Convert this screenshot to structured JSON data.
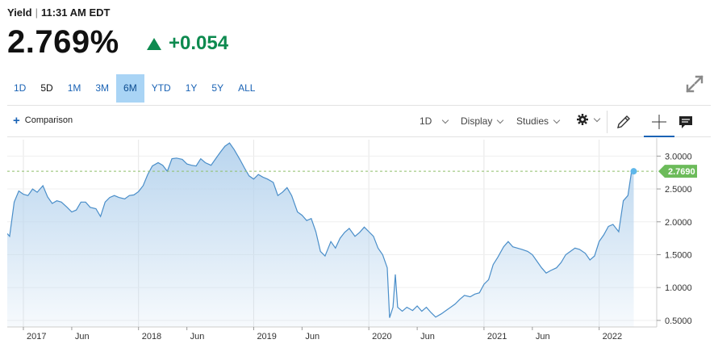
{
  "quote": {
    "label": "Yield",
    "separator": "|",
    "time": "11:31 AM EDT",
    "price": "2.769%",
    "change": "+0.054",
    "change_direction": "up",
    "up_color": "#0d8a4f"
  },
  "ranges": [
    {
      "label": "1D",
      "active": false,
      "bold": false
    },
    {
      "label": "5D",
      "active": false,
      "bold": true
    },
    {
      "label": "1M",
      "active": false,
      "bold": false
    },
    {
      "label": "3M",
      "active": false,
      "bold": false
    },
    {
      "label": "6M",
      "active": true,
      "bold": false
    },
    {
      "label": "YTD",
      "active": false,
      "bold": false
    },
    {
      "label": "1Y",
      "active": false,
      "bold": false
    },
    {
      "label": "5Y",
      "active": false,
      "bold": false
    },
    {
      "label": "ALL",
      "active": false,
      "bold": false
    }
  ],
  "toolbar": {
    "comparison_label": "Comparison",
    "interval_label": "1D",
    "display_label": "Display",
    "studies_label": "Studies",
    "icons": [
      "plus-icon",
      "chevron-down-icon",
      "gear-icon",
      "pencil-icon",
      "crosshair-icon",
      "comment-icon",
      "expand-icon"
    ]
  },
  "chart_data": {
    "type": "area",
    "series": [
      {
        "values": [
          [
            2016.86,
            1.82
          ],
          [
            2016.88,
            1.78
          ],
          [
            2016.92,
            2.3
          ],
          [
            2016.96,
            2.47
          ],
          [
            2017.0,
            2.42
          ],
          [
            2017.04,
            2.4
          ],
          [
            2017.08,
            2.5
          ],
          [
            2017.12,
            2.45
          ],
          [
            2017.17,
            2.55
          ],
          [
            2017.21,
            2.38
          ],
          [
            2017.25,
            2.28
          ],
          [
            2017.29,
            2.32
          ],
          [
            2017.33,
            2.3
          ],
          [
            2017.38,
            2.22
          ],
          [
            2017.42,
            2.15
          ],
          [
            2017.46,
            2.18
          ],
          [
            2017.5,
            2.3
          ],
          [
            2017.54,
            2.3
          ],
          [
            2017.58,
            2.22
          ],
          [
            2017.63,
            2.2
          ],
          [
            2017.67,
            2.08
          ],
          [
            2017.71,
            2.3
          ],
          [
            2017.75,
            2.37
          ],
          [
            2017.79,
            2.4
          ],
          [
            2017.83,
            2.37
          ],
          [
            2017.88,
            2.35
          ],
          [
            2017.92,
            2.4
          ],
          [
            2017.96,
            2.41
          ],
          [
            2018.0,
            2.46
          ],
          [
            2018.04,
            2.55
          ],
          [
            2018.08,
            2.72
          ],
          [
            2018.12,
            2.85
          ],
          [
            2018.17,
            2.9
          ],
          [
            2018.21,
            2.86
          ],
          [
            2018.25,
            2.77
          ],
          [
            2018.29,
            2.96
          ],
          [
            2018.33,
            2.97
          ],
          [
            2018.38,
            2.95
          ],
          [
            2018.42,
            2.88
          ],
          [
            2018.46,
            2.86
          ],
          [
            2018.5,
            2.85
          ],
          [
            2018.54,
            2.96
          ],
          [
            2018.58,
            2.9
          ],
          [
            2018.63,
            2.86
          ],
          [
            2018.67,
            2.96
          ],
          [
            2018.71,
            3.06
          ],
          [
            2018.75,
            3.15
          ],
          [
            2018.79,
            3.2
          ],
          [
            2018.83,
            3.1
          ],
          [
            2018.88,
            2.95
          ],
          [
            2018.92,
            2.82
          ],
          [
            2018.96,
            2.7
          ],
          [
            2019.0,
            2.65
          ],
          [
            2019.04,
            2.72
          ],
          [
            2019.08,
            2.68
          ],
          [
            2019.12,
            2.65
          ],
          [
            2019.17,
            2.6
          ],
          [
            2019.21,
            2.4
          ],
          [
            2019.25,
            2.45
          ],
          [
            2019.29,
            2.52
          ],
          [
            2019.33,
            2.4
          ],
          [
            2019.38,
            2.15
          ],
          [
            2019.42,
            2.1
          ],
          [
            2019.46,
            2.02
          ],
          [
            2019.5,
            2.05
          ],
          [
            2019.54,
            1.85
          ],
          [
            2019.58,
            1.55
          ],
          [
            2019.62,
            1.48
          ],
          [
            2019.67,
            1.7
          ],
          [
            2019.71,
            1.6
          ],
          [
            2019.75,
            1.75
          ],
          [
            2019.79,
            1.84
          ],
          [
            2019.83,
            1.9
          ],
          [
            2019.88,
            1.78
          ],
          [
            2019.92,
            1.84
          ],
          [
            2019.96,
            1.92
          ],
          [
            2020.0,
            1.85
          ],
          [
            2020.04,
            1.78
          ],
          [
            2020.08,
            1.6
          ],
          [
            2020.12,
            1.5
          ],
          [
            2020.16,
            1.3
          ],
          [
            2020.18,
            0.54
          ],
          [
            2020.21,
            0.7
          ],
          [
            2020.23,
            1.2
          ],
          [
            2020.25,
            0.7
          ],
          [
            2020.29,
            0.64
          ],
          [
            2020.33,
            0.7
          ],
          [
            2020.38,
            0.65
          ],
          [
            2020.42,
            0.72
          ],
          [
            2020.46,
            0.64
          ],
          [
            2020.5,
            0.7
          ],
          [
            2020.54,
            0.62
          ],
          [
            2020.58,
            0.55
          ],
          [
            2020.63,
            0.6
          ],
          [
            2020.67,
            0.65
          ],
          [
            2020.71,
            0.7
          ],
          [
            2020.75,
            0.75
          ],
          [
            2020.79,
            0.82
          ],
          [
            2020.83,
            0.88
          ],
          [
            2020.88,
            0.86
          ],
          [
            2020.92,
            0.9
          ],
          [
            2020.96,
            0.92
          ],
          [
            2021.0,
            1.05
          ],
          [
            2021.04,
            1.12
          ],
          [
            2021.08,
            1.35
          ],
          [
            2021.12,
            1.46
          ],
          [
            2021.17,
            1.62
          ],
          [
            2021.21,
            1.7
          ],
          [
            2021.25,
            1.62
          ],
          [
            2021.29,
            1.6
          ],
          [
            2021.33,
            1.58
          ],
          [
            2021.38,
            1.55
          ],
          [
            2021.42,
            1.5
          ],
          [
            2021.46,
            1.4
          ],
          [
            2021.5,
            1.3
          ],
          [
            2021.54,
            1.22
          ],
          [
            2021.58,
            1.26
          ],
          [
            2021.63,
            1.3
          ],
          [
            2021.67,
            1.38
          ],
          [
            2021.71,
            1.5
          ],
          [
            2021.75,
            1.55
          ],
          [
            2021.79,
            1.6
          ],
          [
            2021.83,
            1.58
          ],
          [
            2021.88,
            1.52
          ],
          [
            2021.92,
            1.42
          ],
          [
            2021.96,
            1.48
          ],
          [
            2022.0,
            1.7
          ],
          [
            2022.04,
            1.8
          ],
          [
            2022.08,
            1.93
          ],
          [
            2022.12,
            1.96
          ],
          [
            2022.17,
            1.85
          ],
          [
            2022.21,
            2.32
          ],
          [
            2022.25,
            2.4
          ],
          [
            2022.28,
            2.75
          ],
          [
            2022.3,
            2.769
          ]
        ]
      }
    ],
    "last_value_label": "2.7690",
    "y_ticks": [
      "3.0000",
      "2.5000",
      "2.0000",
      "1.5000",
      "1.0000",
      "0.5000"
    ],
    "y_tick_values": [
      3.0,
      2.5,
      2.0,
      1.5,
      1.0,
      0.5
    ],
    "x_ticks": [
      "2017",
      "Jun",
      "2018",
      "Jun",
      "2019",
      "Jun",
      "2020",
      "Jun",
      "2021",
      "Jun",
      "2022"
    ],
    "x_tick_values": [
      2017.0,
      2017.42,
      2018.0,
      2018.42,
      2019.0,
      2019.42,
      2020.0,
      2020.42,
      2021.0,
      2021.42,
      2022.0
    ],
    "xlim": [
      2016.86,
      2022.5
    ],
    "ylim": [
      0.4,
      3.25
    ],
    "grid": true,
    "line_color": "#4a8ec9",
    "fill_color": "#b9d5ee",
    "badge_color": "#6cbb5a",
    "reference_line_color": "#8fbf6a"
  }
}
